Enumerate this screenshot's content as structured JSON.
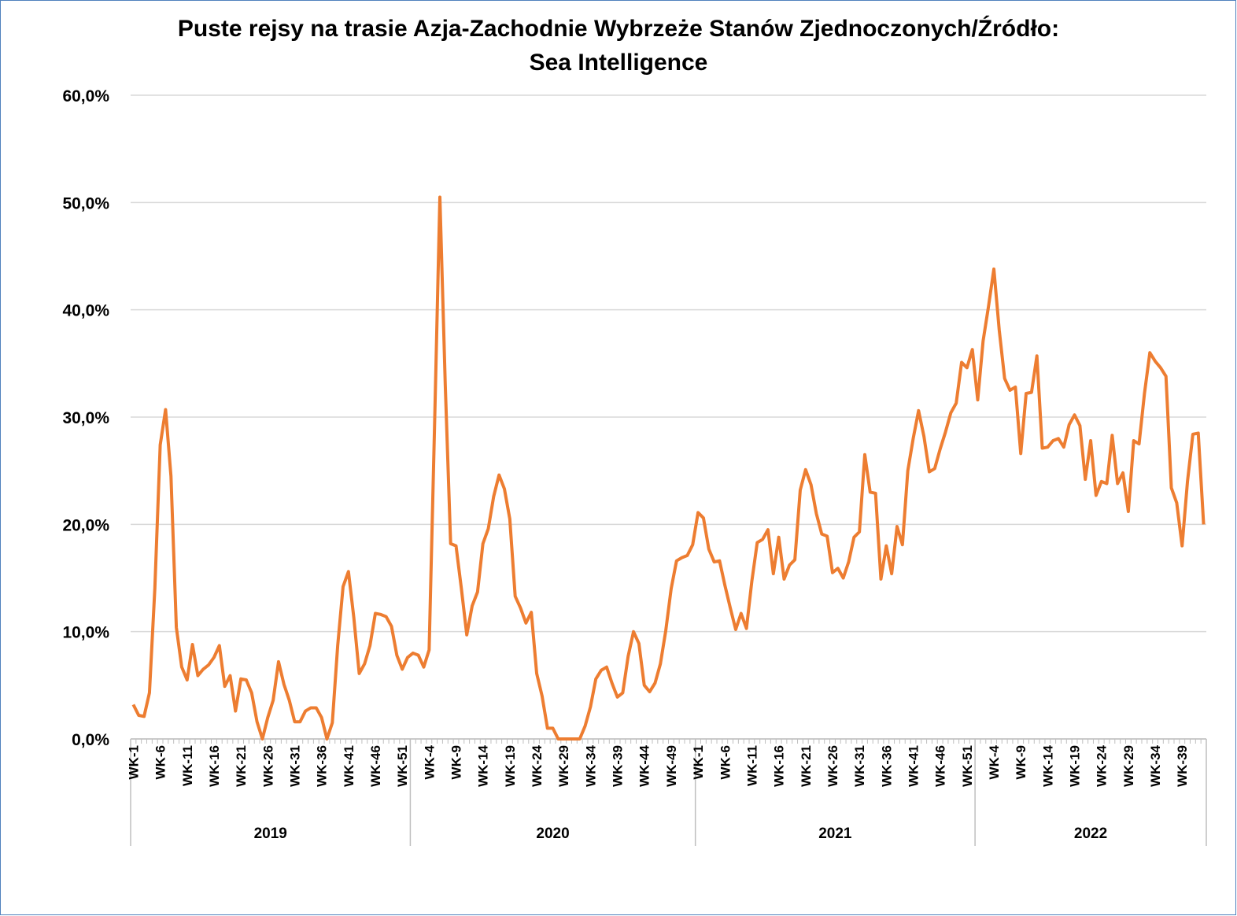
{
  "chart_data": {
    "type": "line",
    "title": [
      "Puste rejsy na trasie Azja-Zachodnie Wybrzeże Stanów Zjednoczonych/Źródło:",
      "Sea Intelligence"
    ],
    "groups": [
      {
        "label": "2019",
        "categories": [
          "WK-1",
          null,
          null,
          null,
          null,
          "WK-6",
          null,
          null,
          null,
          null,
          "WK-11",
          null,
          null,
          null,
          null,
          "WK-16",
          null,
          null,
          null,
          null,
          "WK-21",
          null,
          null,
          null,
          null,
          "WK-26",
          null,
          null,
          null,
          null,
          "WK-31",
          null,
          null,
          null,
          null,
          "WK-36",
          null,
          null,
          null,
          null,
          "WK-41",
          null,
          null,
          null,
          null,
          "WK-46",
          null,
          null,
          null,
          null,
          "WK-51",
          null
        ]
      },
      {
        "label": "2020",
        "categories": [
          null,
          null,
          null,
          "WK-4",
          null,
          null,
          null,
          null,
          "WK-9",
          null,
          null,
          null,
          null,
          "WK-14",
          null,
          null,
          null,
          null,
          "WK-19",
          null,
          null,
          null,
          null,
          "WK-24",
          null,
          null,
          null,
          null,
          "WK-29",
          null,
          null,
          null,
          null,
          "WK-34",
          null,
          null,
          null,
          null,
          "WK-39",
          null,
          null,
          null,
          null,
          "WK-44",
          null,
          null,
          null,
          null,
          "WK-49",
          null,
          null,
          null,
          null
        ]
      },
      {
        "label": "2021",
        "categories": [
          "WK-1",
          null,
          null,
          null,
          null,
          "WK-6",
          null,
          null,
          null,
          null,
          "WK-11",
          null,
          null,
          null,
          null,
          "WK-16",
          null,
          null,
          null,
          null,
          "WK-21",
          null,
          null,
          null,
          null,
          "WK-26",
          null,
          null,
          null,
          null,
          "WK-31",
          null,
          null,
          null,
          null,
          "WK-36",
          null,
          null,
          null,
          null,
          "WK-41",
          null,
          null,
          null,
          null,
          "WK-46",
          null,
          null,
          null,
          null,
          "WK-51",
          null
        ]
      },
      {
        "label": "2022",
        "categories": [
          null,
          null,
          null,
          "WK-4",
          null,
          null,
          null,
          null,
          "WK-9",
          null,
          null,
          null,
          null,
          "WK-14",
          null,
          null,
          null,
          null,
          "WK-19",
          null,
          null,
          null,
          null,
          "WK-24",
          null,
          null,
          null,
          null,
          "WK-29",
          null,
          null,
          null,
          null,
          "WK-34",
          null,
          null,
          null,
          null,
          "WK-39",
          null,
          null,
          null,
          null
        ]
      }
    ],
    "values": [
      3.2,
      2.2,
      2.1,
      4.3,
      14.0,
      27.4,
      30.7,
      24.5,
      10.4,
      6.7,
      5.5,
      8.8,
      5.9,
      6.5,
      6.9,
      7.6,
      8.7,
      4.9,
      5.9,
      2.6,
      5.6,
      5.5,
      4.3,
      1.6,
      0,
      2.0,
      3.6,
      7.2,
      5.1,
      3.6,
      1.6,
      1.6,
      2.6,
      2.9,
      2.9,
      2.0,
      0,
      1.5,
      8.7,
      14.2,
      15.6,
      11.3,
      6.1,
      7.0,
      8.7,
      11.7,
      11.6,
      11.4,
      10.5,
      7.8,
      6.5,
      7.6,
      8.0,
      7.8,
      6.7,
      8.3,
      29.0,
      50.5,
      33.0,
      18.2,
      18.0,
      14.0,
      9.7,
      12.4,
      13.7,
      18.2,
      19.6,
      22.6,
      24.6,
      23.3,
      20.5,
      13.3,
      12.2,
      10.8,
      11.8,
      6.1,
      4.0,
      1.0,
      1.0,
      0,
      0,
      0,
      0,
      0,
      1.2,
      3.0,
      5.6,
      6.4,
      6.7,
      5.2,
      3.9,
      4.3,
      7.7,
      10.0,
      8.9,
      5.0,
      4.4,
      5.2,
      7.0,
      10.1,
      14.0,
      16.6,
      16.9,
      17.1,
      18.1,
      21.1,
      20.6,
      17.7,
      16.5,
      16.6,
      14.3,
      12.2,
      10.2,
      11.7,
      10.3,
      14.7,
      18.3,
      18.6,
      19.5,
      15.4,
      18.8,
      14.9,
      16.2,
      16.7,
      23.2,
      25.1,
      23.7,
      21.0,
      19.1,
      18.9,
      15.5,
      15.9,
      15.0,
      16.5,
      18.8,
      19.3,
      26.5,
      23.0,
      22.9,
      14.9,
      18.0,
      15.4,
      19.8,
      18.1,
      25.0,
      28.0,
      30.6,
      28.2,
      24.9,
      25.2,
      27.0,
      28.6,
      30.4,
      31.3,
      35.1,
      34.6,
      36.3,
      31.6,
      37.1,
      40.3,
      43.8,
      38.1,
      33.6,
      32.5,
      32.8,
      26.6,
      32.2,
      32.3,
      35.7,
      27.1,
      27.2,
      27.8,
      28.0,
      27.2,
      29.3,
      30.2,
      29.2,
      24.2,
      27.8,
      22.7,
      24.0,
      23.8,
      28.3,
      23.8,
      24.8,
      21.2,
      27.8,
      27.5,
      32.2,
      36.0,
      35.2,
      34.6,
      33.8,
      23.4,
      22.0,
      18.0,
      24.0,
      28.4,
      28.5,
      20.0
    ],
    "color": "#ed7d31",
    "ylim": [
      0,
      60
    ],
    "yticks": [
      {
        "value": 0,
        "label": "0,0%"
      },
      {
        "value": 10,
        "label": "10,0%"
      },
      {
        "value": 20,
        "label": "20,0%"
      },
      {
        "value": 30,
        "label": "30,0%"
      },
      {
        "value": 40,
        "label": "40,0%"
      },
      {
        "value": 50,
        "label": "50,0%"
      },
      {
        "value": 60,
        "label": "60,0%"
      }
    ],
    "grid": true
  }
}
